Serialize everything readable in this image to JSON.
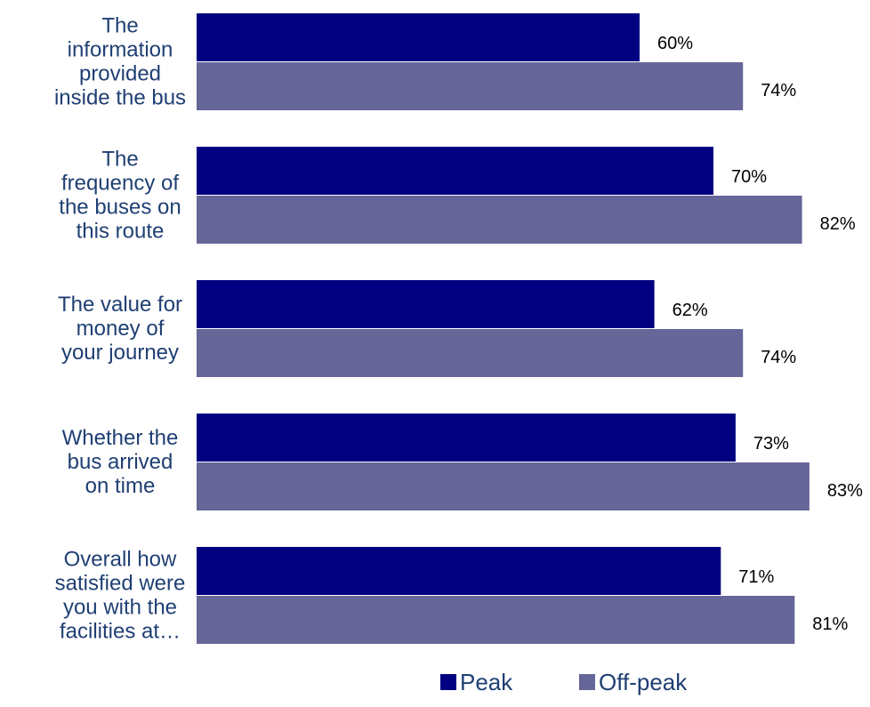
{
  "chart_data": {
    "type": "bar",
    "orientation": "horizontal",
    "categories": [
      [
        "The",
        "information",
        "provided",
        "inside the bus"
      ],
      [
        "The",
        "frequency of",
        "the buses on",
        "this route"
      ],
      [
        "The value for",
        "money of",
        "your journey"
      ],
      [
        "Whether the",
        "bus arrived",
        "on time"
      ],
      [
        "Overall how",
        "satisfied were",
        "you with the",
        "facilities at…"
      ]
    ],
    "series": [
      {
        "name": "Peak",
        "color": "#000080",
        "values": [
          60,
          70,
          62,
          73,
          71
        ],
        "labels": [
          "60%",
          "70%",
          "62%",
          "73%",
          "71%"
        ]
      },
      {
        "name": "Off-peak",
        "color": "#666699",
        "values": [
          74,
          82,
          74,
          83,
          81
        ],
        "labels": [
          "74%",
          "82%",
          "74%",
          "83%",
          "81%"
        ]
      }
    ],
    "xlim": [
      0,
      100
    ],
    "grid": false,
    "legend_position": "bottom"
  }
}
